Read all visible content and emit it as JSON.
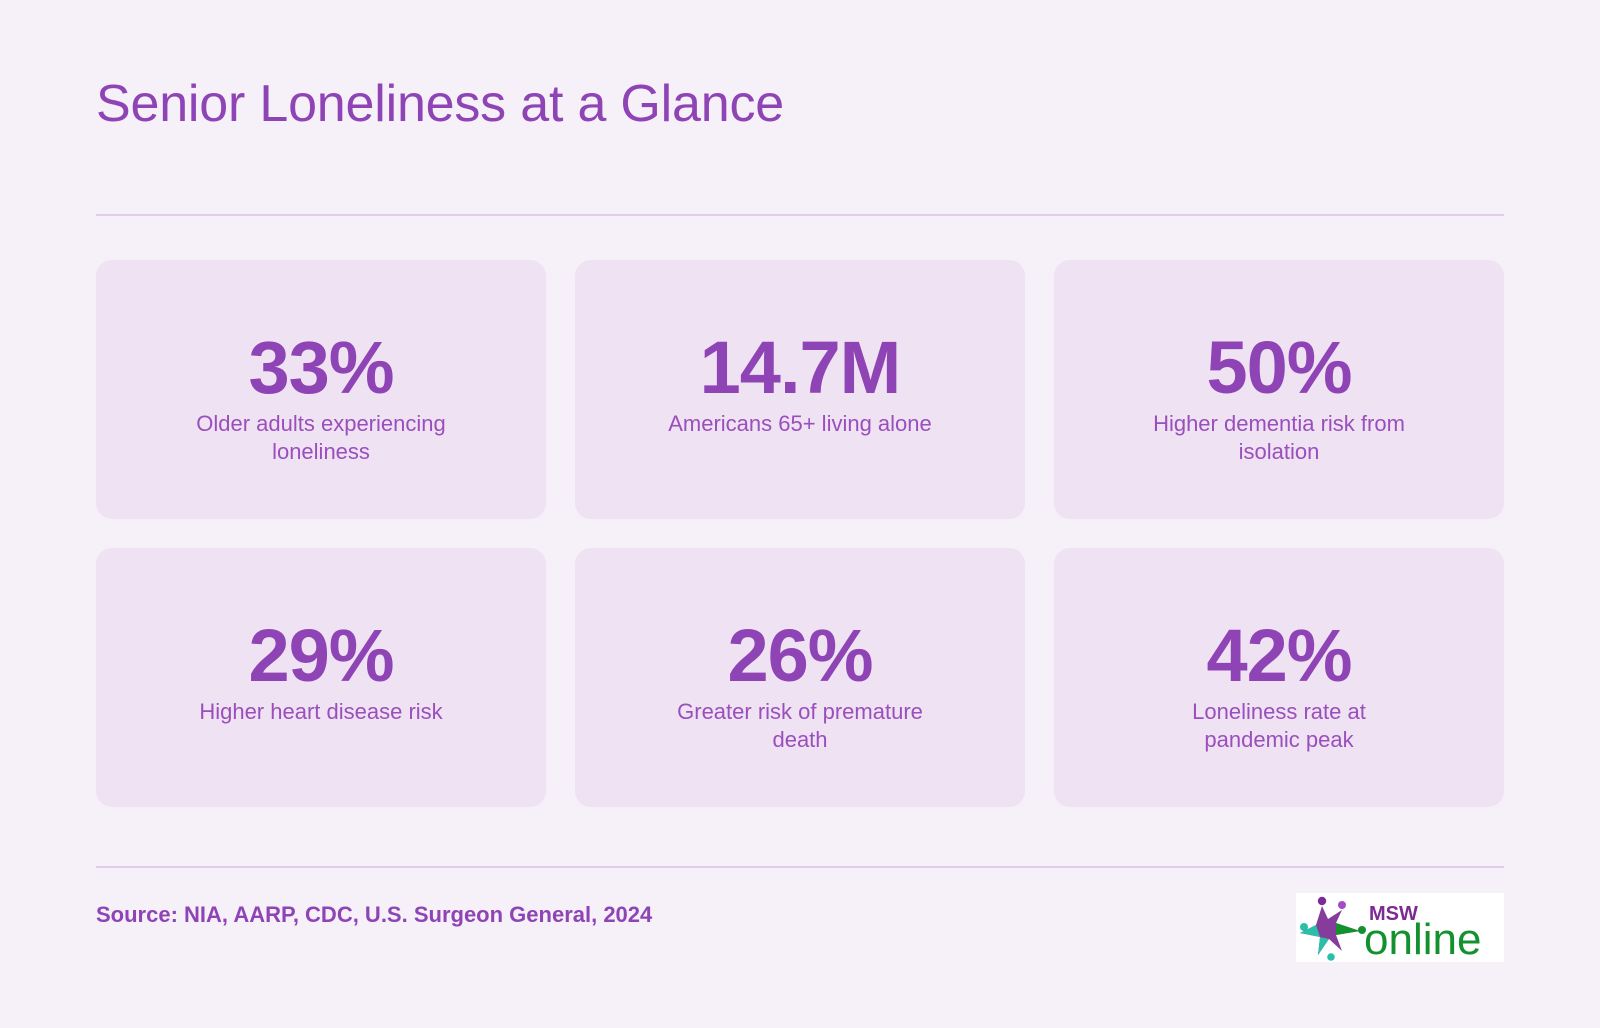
{
  "header": {
    "title": "Senior Loneliness at a Glance"
  },
  "stats": [
    {
      "value": "33%",
      "label": "Older adults experiencing loneliness"
    },
    {
      "value": "14.7M",
      "label": "Americans 65+ living alone"
    },
    {
      "value": "50%",
      "label": "Higher dementia risk from isolation"
    },
    {
      "value": "29%",
      "label": "Higher heart disease risk"
    },
    {
      "value": "26%",
      "label": "Greater risk of premature death"
    },
    {
      "value": "42%",
      "label": "Loneliness rate at pandemic peak"
    }
  ],
  "footer": {
    "source": "Source: NIA, AARP, CDC, U.S. Surgeon General, 2024",
    "logo": {
      "name": "msw-online-logo",
      "text_top": "MSW",
      "text_main": "online"
    }
  },
  "colors": {
    "background": "#f6f0f8",
    "card": "#efe2f3",
    "accent": "#8e44b5",
    "divider": "#e0cdea",
    "logo_purple": "#7b2b93",
    "logo_green": "#14912f",
    "logo_teal": "#2bbfa8"
  }
}
